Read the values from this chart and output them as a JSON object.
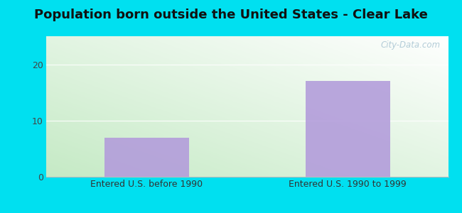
{
  "title": "Population born outside the United States - Clear Lake",
  "categories": [
    "Entered U.S. before 1990",
    "Entered U.S. 1990 to 1999"
  ],
  "values": [
    7,
    17
  ],
  "bar_color": "#b39ddb",
  "bar_alpha": 0.9,
  "ylim": [
    0,
    25
  ],
  "yticks": [
    0,
    10,
    20
  ],
  "outer_bg": "#00e0f0",
  "plot_bg_topleft": "#c5eac5",
  "plot_bg_bottomright": "#ffffff",
  "title_fontsize": 13,
  "tick_fontsize": 9,
  "label_fontsize": 9,
  "watermark": "City-Data.com",
  "grid_color": "#ccddcc",
  "grid_alpha": 0.6
}
